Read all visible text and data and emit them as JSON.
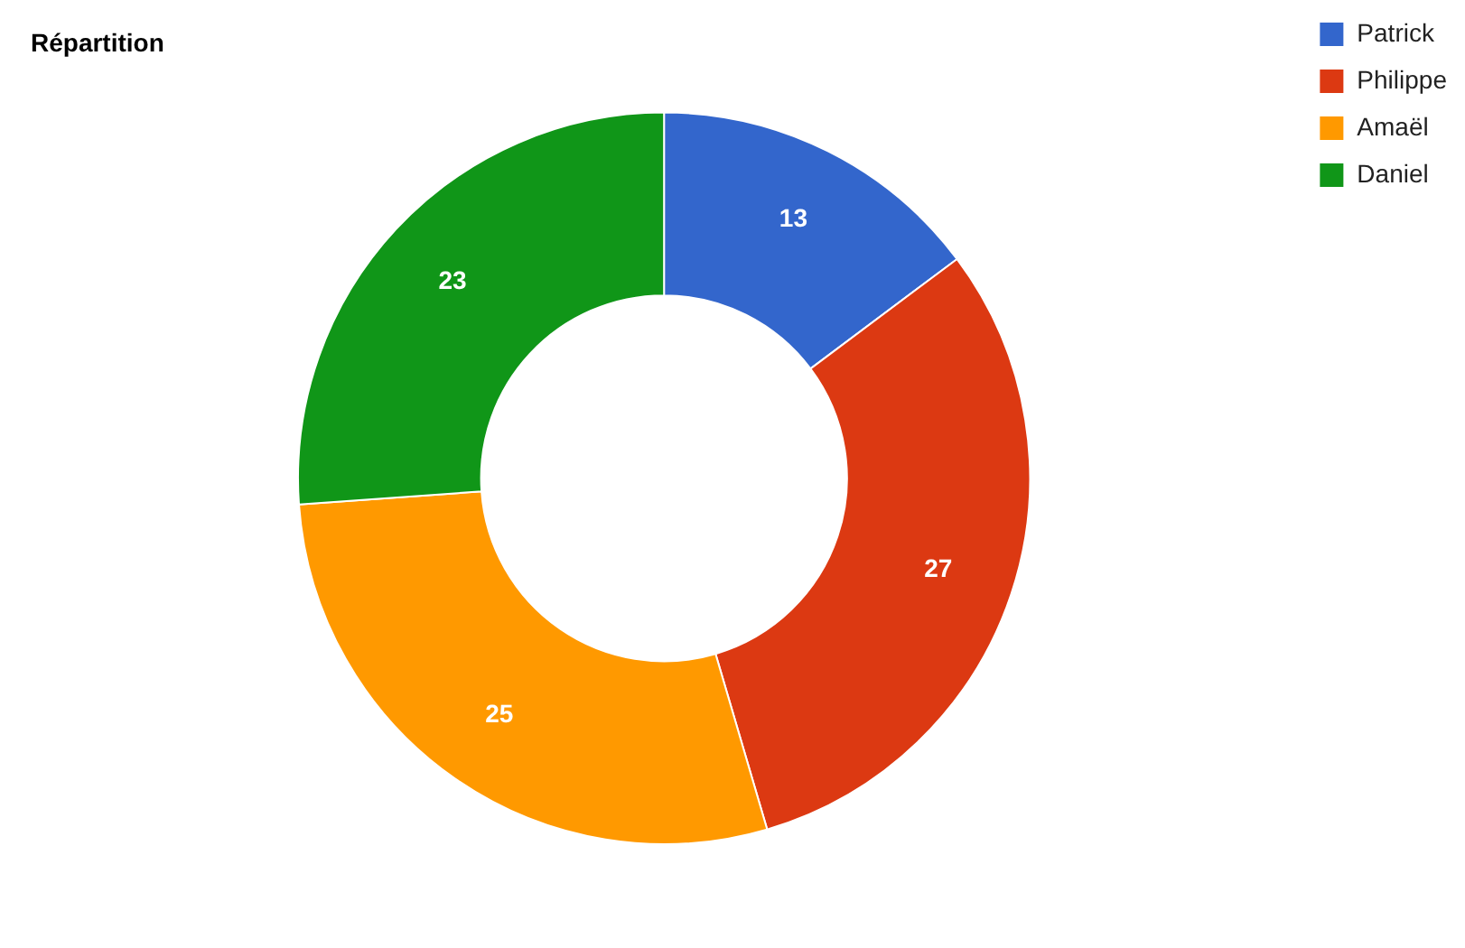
{
  "chart_data": {
    "type": "donut",
    "title": "Répartition",
    "categories": [
      "Patrick",
      "Philippe",
      "Amaël",
      "Daniel"
    ],
    "values": [
      13,
      27,
      25,
      23
    ],
    "colors": [
      "#3366cc",
      "#dc3912",
      "#ff9900",
      "#109618"
    ],
    "data_labels": true,
    "legend": "top right"
  }
}
